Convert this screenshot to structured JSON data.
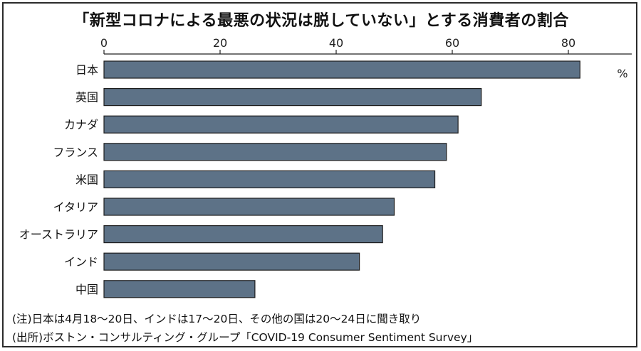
{
  "title": "「新型コロナによる最悪の状況は脱していない」とする消費者の割合",
  "chart_data": {
    "type": "bar",
    "orientation": "horizontal",
    "categories": [
      "日本",
      "英国",
      "カナダ",
      "フランス",
      "米国",
      "イタリア",
      "オーストラリア",
      "インド",
      "中国"
    ],
    "values": [
      82,
      65,
      61,
      59,
      57,
      50,
      48,
      44,
      26
    ],
    "unit": "%",
    "xlim": [
      0,
      90
    ],
    "xticks": [
      0,
      20,
      40,
      60,
      80
    ],
    "tick_labels": [
      "0",
      "20",
      "40",
      "60",
      "80"
    ],
    "axis_position": "top",
    "grid": false,
    "bar_color": "#5d7287"
  },
  "notes": {
    "note1": "(注)日本は4月18〜20日、インドは17〜20日、その他の国は20〜24日に聞き取り",
    "note2": "(出所)ボストン・コンサルティング・グループ「COVID-19 Consumer Sentiment Survey」"
  }
}
